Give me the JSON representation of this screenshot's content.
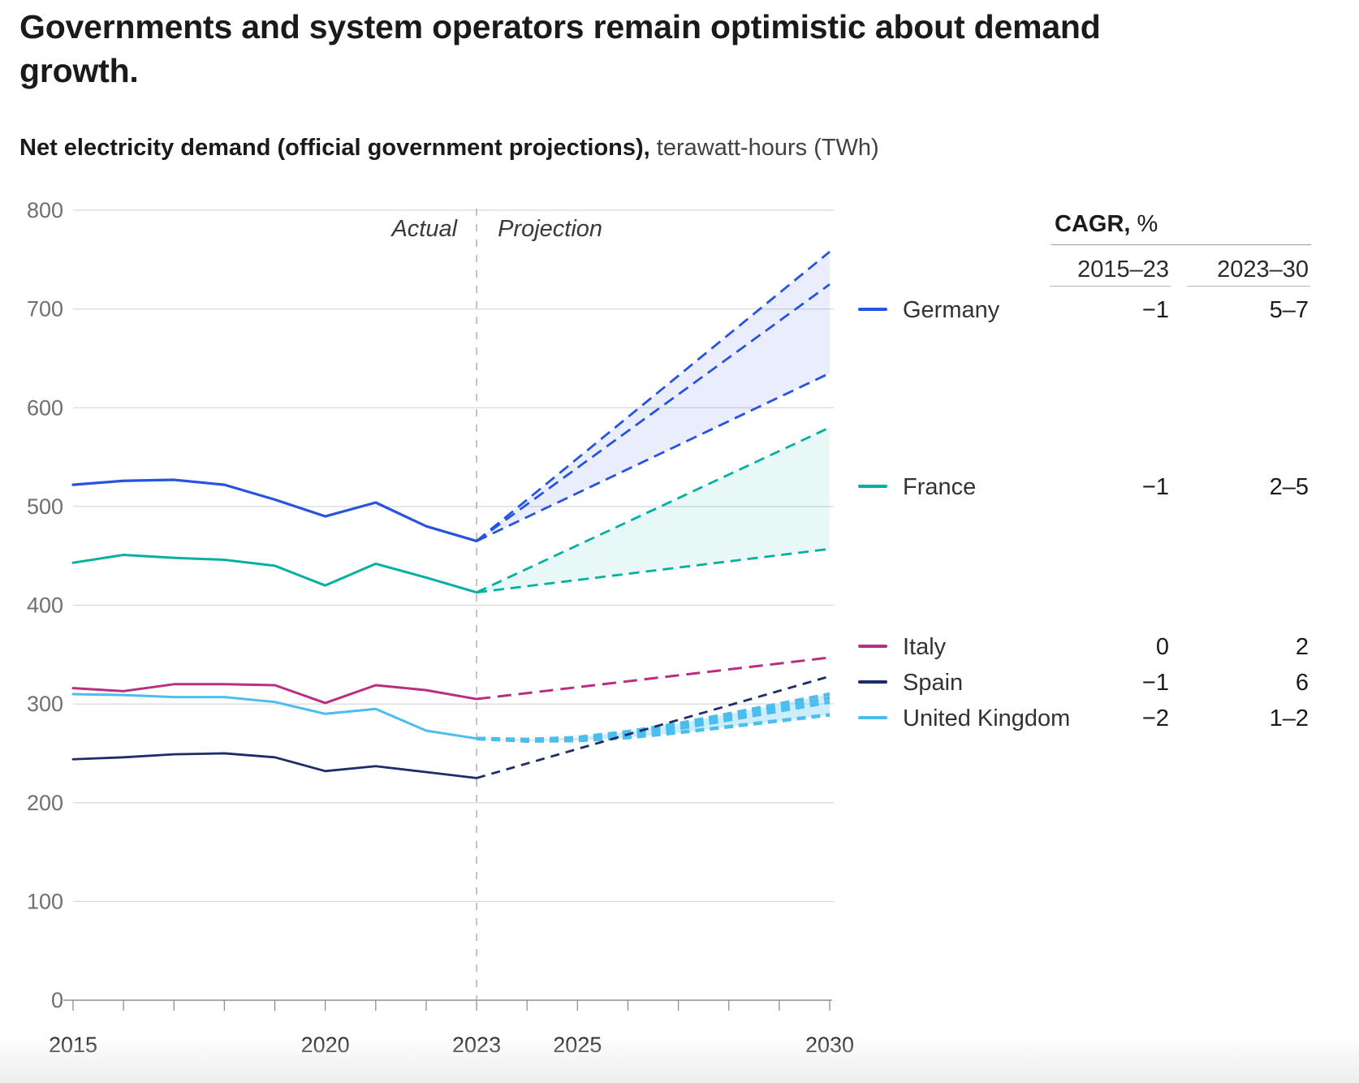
{
  "page": {
    "title": "Governments and system operators remain optimistic about demand growth.",
    "subtitle_bold": "Net electricity demand (official government projections),",
    "subtitle_regular": " terawatt-hours (TWh)"
  },
  "chart_data": {
    "type": "line",
    "title": "Net electricity demand (official government projections)",
    "xlabel": "",
    "ylabel": "terawatt-hours (TWh)",
    "x_range": [
      2015,
      2030
    ],
    "y_range": [
      0,
      800
    ],
    "y_ticks": [
      0,
      100,
      200,
      300,
      400,
      500,
      600,
      700,
      800
    ],
    "x_ticks_all": [
      2015,
      2016,
      2017,
      2018,
      2019,
      2020,
      2021,
      2022,
      2023,
      2024,
      2025,
      2026,
      2027,
      2028,
      2029,
      2030
    ],
    "x_tick_labels": [
      2015,
      2020,
      2023,
      2025,
      2030
    ],
    "grid": "horizontal",
    "divider_year": 2023,
    "annotations": {
      "actual": "Actual",
      "projection": "Projection"
    },
    "years_actual": [
      2015,
      2016,
      2017,
      2018,
      2019,
      2020,
      2021,
      2022,
      2023
    ],
    "series": [
      {
        "id": "france",
        "name": "France",
        "color": "#00b0a1",
        "band_fill": "rgba(0,176,161,0.09)",
        "lw": 3,
        "pw": 2.8,
        "dash": "13 8",
        "band": [
          0,
          1
        ],
        "actual": [
          443,
          451,
          448,
          446,
          440,
          420,
          442,
          428,
          413
        ],
        "projections": [
          {
            "points": [
              [
                2023,
                413
              ],
              [
                2030,
                580
              ]
            ]
          },
          {
            "points": [
              [
                2023,
                413
              ],
              [
                2030,
                457
              ]
            ]
          }
        ]
      },
      {
        "id": "germany",
        "name": "Germany",
        "color": "#2653e0",
        "band_fill": "rgba(38,83,224,0.10)",
        "lw": 3.2,
        "pw": 2.8,
        "dash": "14 8",
        "band": [
          0,
          2
        ],
        "actual": [
          522,
          526,
          527,
          522,
          507,
          490,
          504,
          480,
          465
        ],
        "projections": [
          {
            "points": [
              [
                2023,
                465
              ],
              [
                2030,
                758
              ]
            ]
          },
          {
            "points": [
              [
                2023,
                465
              ],
              [
                2030,
                725
              ]
            ]
          },
          {
            "points": [
              [
                2023,
                465
              ],
              [
                2030,
                635
              ]
            ]
          }
        ]
      },
      {
        "id": "italy",
        "name": "Italy",
        "color": "#bb2d80",
        "band_fill": null,
        "lw": 3,
        "pw": 3,
        "dash": "17 9",
        "actual": [
          316,
          313,
          320,
          320,
          319,
          301,
          319,
          314,
          305
        ],
        "projections": [
          {
            "points": [
              [
                2023,
                305
              ],
              [
                2030,
                347
              ]
            ]
          }
        ]
      },
      {
        "id": "uk",
        "name": "United Kingdom",
        "color": "#4bbdee",
        "band_fill": "rgba(91,194,238,0.30)",
        "lw": 3,
        "pw": 4.5,
        "dash": "11 7",
        "band": [
          0,
          3
        ],
        "actual": [
          310,
          309,
          307,
          307,
          302,
          290,
          295,
          273,
          265
        ],
        "projections": [
          {
            "points": [
              [
                2023,
                265
              ],
              [
                2024,
                264
              ],
              [
                2025,
                266
              ],
              [
                2026,
                272
              ],
              [
                2027,
                280
              ],
              [
                2028,
                290
              ],
              [
                2029,
                300
              ],
              [
                2030,
                310
              ]
            ]
          },
          {
            "points": [
              [
                2023,
                265
              ],
              [
                2024,
                263.5
              ],
              [
                2025,
                265
              ],
              [
                2026,
                270
              ],
              [
                2027,
                278
              ],
              [
                2028,
                287
              ],
              [
                2029,
                296.5
              ],
              [
                2030,
                306
              ]
            ]
          },
          {
            "points": [
              [
                2023,
                265
              ],
              [
                2024,
                263
              ],
              [
                2025,
                264
              ],
              [
                2026,
                268
              ],
              [
                2027,
                275
              ],
              [
                2028,
                284
              ],
              [
                2029,
                293
              ],
              [
                2030,
                302
              ]
            ]
          },
          {
            "points": [
              [
                2023,
                265
              ],
              [
                2024,
                262.5
              ],
              [
                2025,
                263
              ],
              [
                2026,
                266
              ],
              [
                2027,
                271
              ],
              [
                2028,
                277
              ],
              [
                2029,
                283
              ],
              [
                2030,
                289
              ]
            ]
          }
        ]
      },
      {
        "id": "spain",
        "name": "Spain",
        "color": "#1c2d69",
        "band_fill": null,
        "lw": 2.8,
        "pw": 2.8,
        "dash": "11 8",
        "actual": [
          244,
          246,
          249,
          250,
          246,
          232,
          237,
          231,
          225
        ],
        "projections": [
          {
            "points": [
              [
                2023,
                225
              ],
              [
                2030,
                328
              ]
            ]
          }
        ]
      }
    ]
  },
  "legend": {
    "cagr_label": "CAGR,",
    "cagr_unit": " %",
    "col1": "2015–23",
    "col2": "2023–30",
    "rows": [
      {
        "id": "germany",
        "country": "Germany",
        "color": "#2653e0",
        "v1": "−1",
        "v2": "5–7"
      },
      {
        "id": "france",
        "country": "France",
        "color": "#00b0a1",
        "v1": "−1",
        "v2": "2–5"
      },
      {
        "id": "italy",
        "country": "Italy",
        "color": "#bb2d80",
        "v1": "0",
        "v2": "2"
      },
      {
        "id": "spain",
        "country": "Spain",
        "color": "#1c2d69",
        "v1": "−1",
        "v2": "6"
      },
      {
        "id": "uk",
        "country": "United Kingdom",
        "color": "#4bbdee",
        "v1": "−2",
        "v2": "1–2"
      }
    ]
  }
}
